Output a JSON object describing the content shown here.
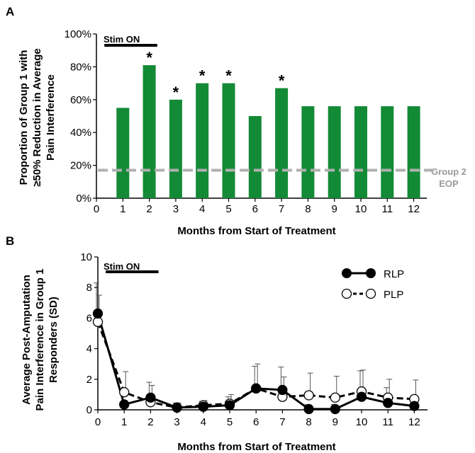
{
  "chart_data": [
    {
      "panel": "A",
      "type": "bar",
      "x": [
        1,
        2,
        3,
        4,
        5,
        6,
        7,
        8,
        9,
        10,
        11,
        12
      ],
      "values": [
        55,
        81,
        60,
        70,
        70,
        50,
        67,
        56,
        56,
        56,
        56,
        56
      ],
      "significant": [
        false,
        true,
        true,
        true,
        true,
        false,
        true,
        false,
        false,
        false,
        false,
        false
      ],
      "star_symbol": "*",
      "bar_color": "#138a36",
      "xlabel": "Months from Start of Treatment",
      "ylabel_lines": [
        "Proportion of Group 1 with",
        "≥50% Reduction in Average",
        "Pain Interference"
      ],
      "xlim": [
        0,
        12.5
      ],
      "ylim": [
        0,
        100
      ],
      "x_ticks": [
        "0",
        "1",
        "2",
        "3",
        "4",
        "5",
        "6",
        "7",
        "8",
        "9",
        "10",
        "11",
        "12"
      ],
      "y_ticks": [
        "0%",
        "20%",
        "40%",
        "60%",
        "80%",
        "100%"
      ],
      "reference_line": {
        "value": 17,
        "label_lines": [
          "Group 2",
          "EOP"
        ],
        "color": "#b0b0b0"
      },
      "stim_on": {
        "label": "Stim ON",
        "from": 0.3,
        "to": 2.3
      }
    },
    {
      "panel": "B",
      "type": "line",
      "x": [
        0,
        1,
        2,
        3,
        4,
        5,
        6,
        7,
        8,
        9,
        10,
        11,
        12
      ],
      "series": [
        {
          "name": "RLP",
          "values": [
            6.3,
            0.35,
            0.8,
            0.15,
            0.2,
            0.3,
            1.4,
            1.3,
            0.05,
            0.05,
            0.85,
            0.45,
            0.25
          ],
          "sd": [
            2.0,
            1.0,
            1.0,
            0.3,
            0.35,
            0.55,
            1.45,
            1.5,
            0.3,
            0.3,
            1.7,
            1.0,
            0.6
          ],
          "marker": "filled-circle",
          "line_style": "solid"
        },
        {
          "name": "PLP",
          "values": [
            5.75,
            1.15,
            0.5,
            0.15,
            0.3,
            0.4,
            1.4,
            0.85,
            0.95,
            0.8,
            1.2,
            0.8,
            0.7
          ],
          "sd": [
            1.75,
            1.35,
            1.1,
            0.3,
            0.3,
            0.6,
            1.6,
            1.3,
            1.45,
            1.4,
            1.4,
            1.2,
            1.25
          ],
          "marker": "open-circle",
          "line_style": "dashed"
        }
      ],
      "xlabel": "Months from Start of Treatment",
      "ylabel_lines": [
        "Average Post-Amputation",
        "Pain Interference in Group 1",
        "Responders (SD)"
      ],
      "xlim": [
        0,
        12.5
      ],
      "ylim": [
        0,
        10
      ],
      "x_ticks": [
        "0",
        "1",
        "2",
        "3",
        "4",
        "5",
        "6",
        "7",
        "8",
        "9",
        "10",
        "11",
        "12"
      ],
      "y_ticks": [
        "0",
        "2",
        "4",
        "6",
        "8",
        "10"
      ],
      "legend_position": "top-right",
      "stim_on": {
        "label": "Stim ON",
        "from": 0.3,
        "to": 2.3
      }
    }
  ],
  "panel_labels": [
    "A",
    "B"
  ]
}
